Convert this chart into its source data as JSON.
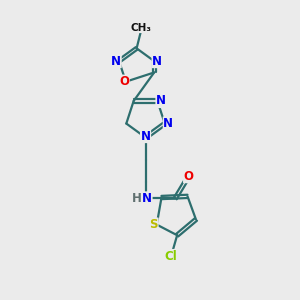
{
  "background_color": "#ebebeb",
  "bond_color": "#2d6e6e",
  "atom_colors": {
    "N": "#0000ee",
    "O": "#ee0000",
    "S": "#bbbb00",
    "Cl": "#88cc00",
    "C": "#000000",
    "H": "#607070"
  },
  "figsize": [
    3.0,
    3.0
  ],
  "dpi": 100,
  "lw": 1.6,
  "fs": 8.5
}
